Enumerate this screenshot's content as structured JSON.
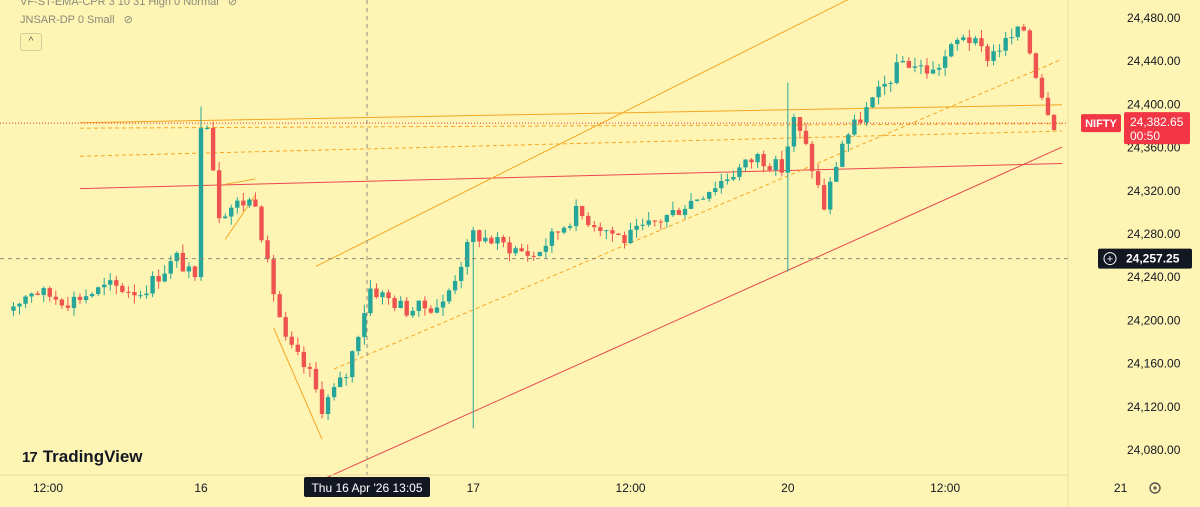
{
  "indicators": [
    {
      "label": "VF-ST-EMA-CPR 3 10 31 High 0 Normal",
      "eye_icon": "eye-slash-icon"
    },
    {
      "label": "JNSAR-DP 0 Small",
      "eye_icon": "eye-slash-icon"
    }
  ],
  "collapse_button": {
    "icon": "chevron-up-icon",
    "glyph": "^"
  },
  "logo": {
    "mark": "17",
    "text": "TradingView"
  },
  "crosshair_label": {
    "date": "Thu 16 Apr '26",
    "time": "13:05"
  },
  "settings_icon": "gear-icon",
  "colors": {
    "background": "#fef5b4",
    "up": "#26a69a",
    "down": "#ef5350",
    "channel": "#f5a623",
    "trend": "#e8474e",
    "price_tag": "#f23645",
    "cross_tag": "#131722"
  },
  "chart_data": {
    "type": "candlestick",
    "title": "",
    "y_axis": {
      "ticks": [
        24080,
        24120,
        24160,
        24200,
        24240,
        24280,
        24320,
        24360,
        24400,
        24440,
        24480
      ],
      "tick_labels": [
        "24,080.00",
        "24,120.00",
        "24,160.00",
        "24,200.00",
        "24,240.00",
        "24,280.00",
        "24,320.00",
        "24,360.00",
        "24,400.00",
        "24,440.00",
        "24,480.00"
      ],
      "range": [
        24050,
        24495
      ]
    },
    "x_axis": {
      "tick_labels": [
        "12:00",
        "16",
        "17",
        "12:00",
        "20",
        "12:00",
        "21"
      ],
      "tick_bar_index": [
        -10,
        0,
        45,
        71,
        97,
        123,
        152
      ],
      "bar_interval_minutes": 5
    },
    "last_price": {
      "symbol": "NIFTY",
      "value": 24382.65,
      "label": "24,382.65",
      "countdown": "00:50"
    },
    "crosshair": {
      "price": 24257.25,
      "label": "24,257.25"
    },
    "session_closes": [
      24209,
      24392,
      24218,
      24330,
      24335,
      24283,
      24313,
      24385,
      24471,
      24382
    ],
    "lines": [
      {
        "name": "horizontal-support-level",
        "color": "#f5a623",
        "dash": false,
        "points": [
          [
            -20,
            24383
          ],
          [
            175,
            24403
          ]
        ]
      },
      {
        "name": "horizontal-resistance-level",
        "color": "#e8474e",
        "dash": false,
        "points": [
          [
            -20,
            24322
          ],
          [
            175,
            24350
          ]
        ]
      },
      {
        "name": "dashed-level-1",
        "color": "#f5a623",
        "dash": true,
        "points": [
          [
            -20,
            24352
          ],
          [
            175,
            24380
          ]
        ]
      },
      {
        "name": "dashed-level-2",
        "color": "#f5a623",
        "dash": true,
        "points": [
          [
            -20,
            24378
          ],
          [
            175,
            24383
          ]
        ]
      },
      {
        "name": "rising-channel-upper",
        "color": "#f5a623",
        "dash": false,
        "points": [
          [
            19,
            24250
          ],
          [
            108,
            24500
          ]
        ]
      },
      {
        "name": "rising-channel-middle",
        "color": "#f5a623",
        "dash": true,
        "points": [
          [
            22,
            24155
          ],
          [
            160,
            24484
          ]
        ]
      },
      {
        "name": "rising-channel-lower",
        "color": "#e8474e",
        "dash": false,
        "points": [
          [
            19,
            24050
          ],
          [
            160,
            24405
          ]
        ]
      },
      {
        "name": "falling-channel",
        "color": "#f5a623",
        "dash": false,
        "points": [
          [
            12,
            24193
          ],
          [
            20,
            24090
          ]
        ]
      },
      {
        "name": "wedge-upper",
        "color": "#f5a623",
        "dash": false,
        "points": [
          [
            4,
            24326
          ],
          [
            9,
            24331
          ]
        ]
      },
      {
        "name": "wedge-lower",
        "color": "#f5a623",
        "dash": false,
        "points": [
          [
            4,
            24275
          ],
          [
            9,
            24316
          ]
        ]
      }
    ],
    "grid": false
  }
}
